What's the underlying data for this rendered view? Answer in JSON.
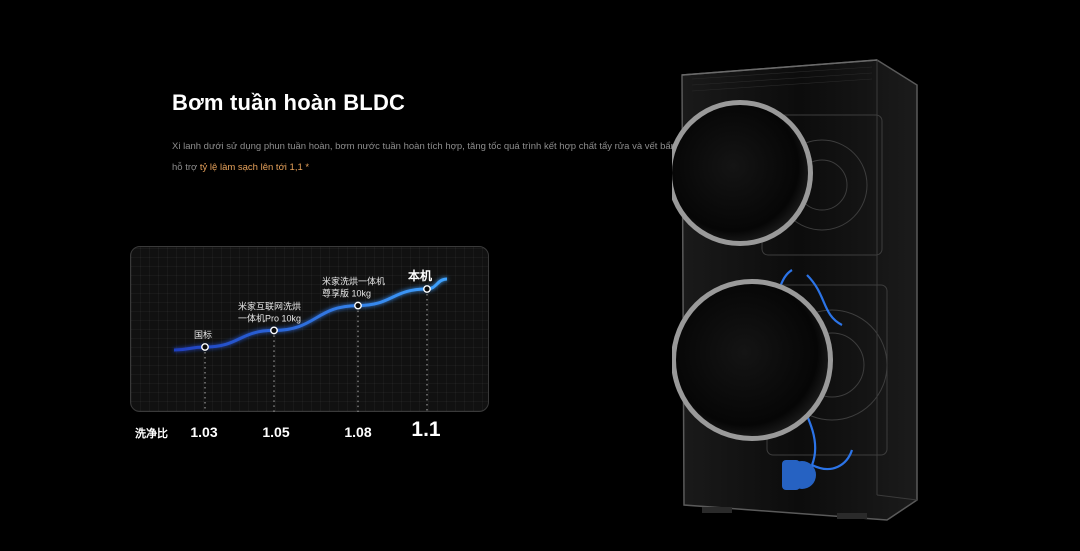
{
  "section": {
    "title": "Bơm tuần hoàn BLDC",
    "description_plain": "Xi lanh dưới sử dụng phun tuần hoàn, bơm nước tuần hoàn tích hợp, tăng tốc quá trình kết hợp chất tẩy rửa và vết bẩn, đồng thời",
    "description_line2_prefix": "hỗ trợ ",
    "description_highlight": "tỷ lệ làm sạch lên tới 1,1 *"
  },
  "colors": {
    "background": "#000000",
    "accent_highlight": "#e6a15a",
    "curve_start": "#1f3fbf",
    "curve_end": "#3fa3ff",
    "machine_glow": "#2f7fff"
  },
  "chart_data": {
    "type": "line",
    "x_axis_label": "洗净比",
    "categories": [
      {
        "name_lines": [
          "国标"
        ],
        "value": 1.03,
        "value_label": "1.03",
        "highlight": false
      },
      {
        "name_lines": [
          "米家互联网洗烘",
          "一体机Pro 10kg"
        ],
        "value": 1.05,
        "value_label": "1.05",
        "highlight": false
      },
      {
        "name_lines": [
          "米家洗烘一体机",
          "尊享版 10kg"
        ],
        "value": 1.08,
        "value_label": "1.08",
        "highlight": false
      },
      {
        "name_lines": [
          "本机"
        ],
        "value": 1.1,
        "value_label": "1.1",
        "highlight": true
      }
    ],
    "ylim": [
      1.0,
      1.12
    ],
    "grid": true
  },
  "product_image": {
    "icon": "washer-dryer-transparent-icon"
  }
}
